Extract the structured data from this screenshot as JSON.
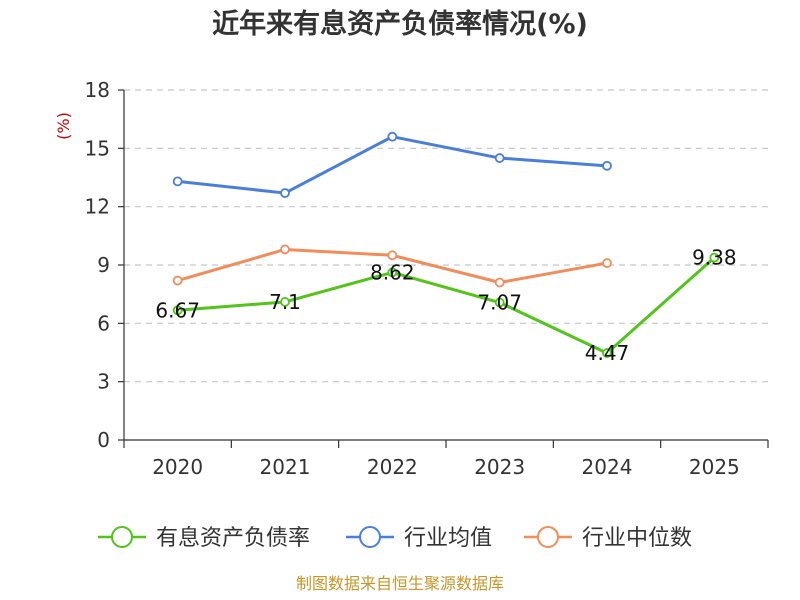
{
  "chart_data": {
    "type": "line",
    "title": "近年来有息资产负债率情况(%)",
    "ylabel": "(%)",
    "xlabel": "",
    "categories": [
      "2020",
      "2021",
      "2022",
      "2023",
      "2024",
      "2025"
    ],
    "ylim": [
      0,
      18
    ],
    "yticks": [
      0,
      3,
      6,
      9,
      12,
      15,
      18
    ],
    "grid": true,
    "legend_position": "bottom",
    "series": [
      {
        "name": "有息资产负债率",
        "color": "#52c41a",
        "values": [
          6.67,
          7.1,
          8.62,
          7.07,
          4.47,
          9.38
        ],
        "labels": [
          "6.67",
          "7.1",
          "8.62",
          "7.07",
          "4.47",
          "9.38"
        ]
      },
      {
        "name": "行业均值",
        "color": "#4a7fd9",
        "values": [
          13.3,
          12.7,
          15.6,
          14.5,
          14.1,
          null
        ]
      },
      {
        "name": "行业中位数",
        "color": "#f28c5a",
        "values": [
          8.2,
          9.8,
          9.5,
          8.1,
          9.1,
          null
        ]
      }
    ]
  },
  "source": "制图数据来自恒生聚源数据库"
}
